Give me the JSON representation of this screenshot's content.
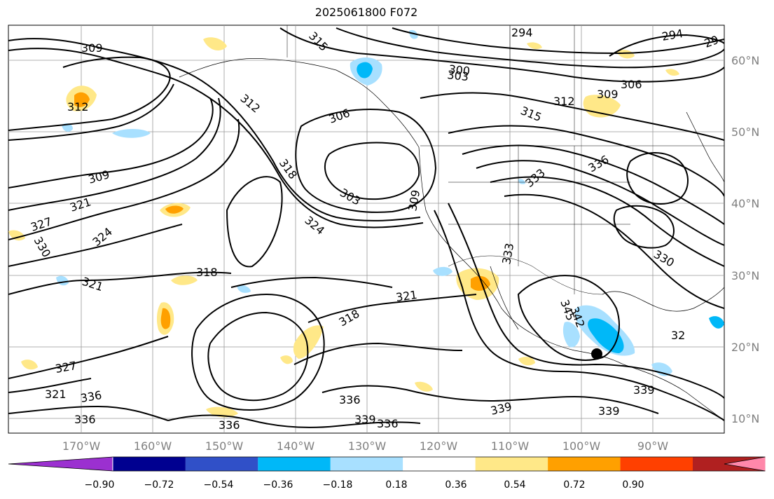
{
  "title": "2025061800 F072",
  "axes": {
    "longitude_ticks": [
      "170°W",
      "160°W",
      "150°W",
      "140°W",
      "130°W",
      "120°W",
      "110°W",
      "100°W",
      "90°W"
    ],
    "latitude_ticks": [
      "60°N",
      "50°N",
      "40°N",
      "30°N",
      "20°N",
      "10°N"
    ],
    "grid": true
  },
  "colorbar": {
    "ticks": [
      "−0.90",
      "−0.72",
      "−0.54",
      "−0.36",
      "−0.18",
      "0.18",
      "0.36",
      "0.54",
      "0.72",
      "0.90"
    ],
    "colors": [
      "#9b30d0",
      "#000090",
      "#3050c8",
      "#00b8f8",
      "#a8e0ff",
      "#ffffff",
      "#ffe888",
      "#ffa000",
      "#ff4000",
      "#b02020",
      "#ff88aa"
    ]
  },
  "contour_labels": [
    "309",
    "312",
    "309",
    "321",
    "327",
    "330",
    "324",
    "321",
    "327",
    "321",
    "336",
    "336",
    "336",
    "315",
    "312",
    "306",
    "318",
    "303",
    "324",
    "309",
    "318",
    "318",
    "321",
    "336",
    "339",
    "336",
    "300",
    "303",
    "312",
    "315",
    "309",
    "306",
    "294",
    "294",
    "29",
    "333",
    "336",
    "330",
    "333",
    "345",
    "342",
    "339",
    "32",
    "339",
    "339"
  ],
  "marker": "filled-circle"
}
